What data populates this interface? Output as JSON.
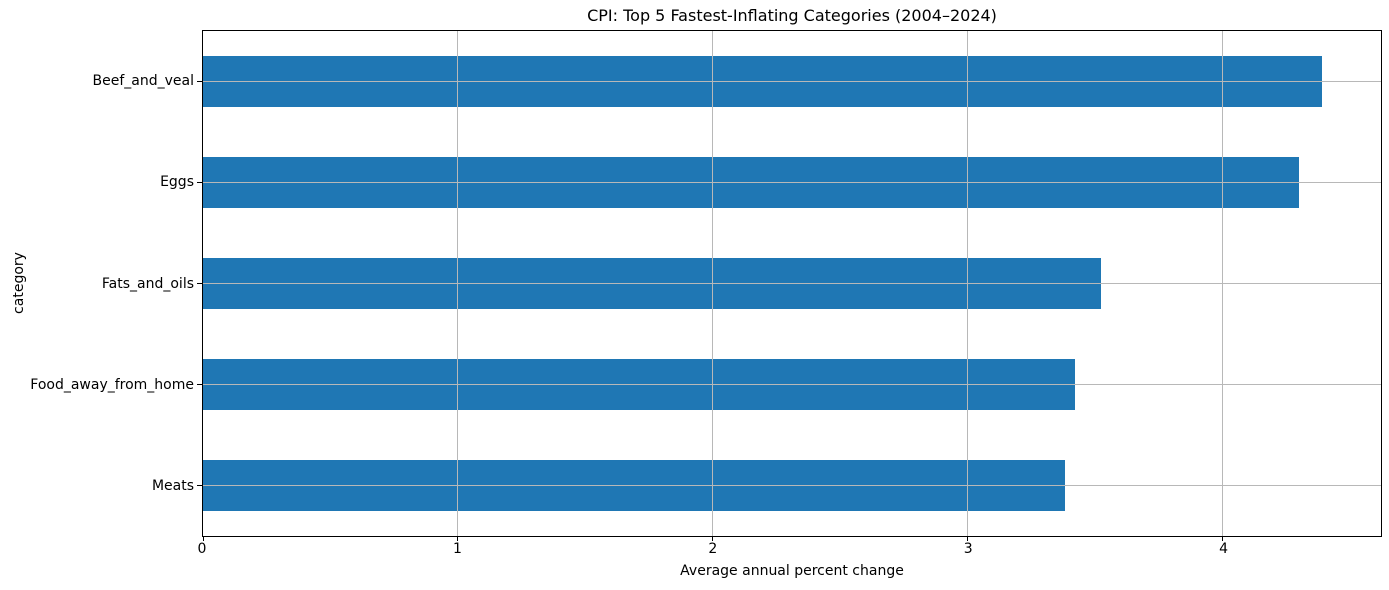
{
  "chart_data": {
    "type": "bar",
    "orientation": "horizontal",
    "title": "CPI: Top 5 Fastest-Inflating Categories (2004–2024)",
    "xlabel": "Average annual percent change",
    "ylabel": "category",
    "categories": [
      "Beef_and_veal",
      "Eggs",
      "Fats_and_oils",
      "Food_away_from_home",
      "Meats"
    ],
    "values": [
      4.39,
      4.3,
      3.52,
      3.42,
      3.38
    ],
    "xlim": [
      0,
      4.62
    ],
    "xticks": [
      0,
      1,
      2,
      3,
      4
    ],
    "grid": true,
    "grid_above_bars": true,
    "legend": false,
    "bar_fraction": 0.5,
    "colors": {
      "bar": "#1f77b4",
      "grid": "#b8b8b8",
      "spine": "#000000",
      "text": "#000000",
      "background": "#ffffff"
    }
  }
}
